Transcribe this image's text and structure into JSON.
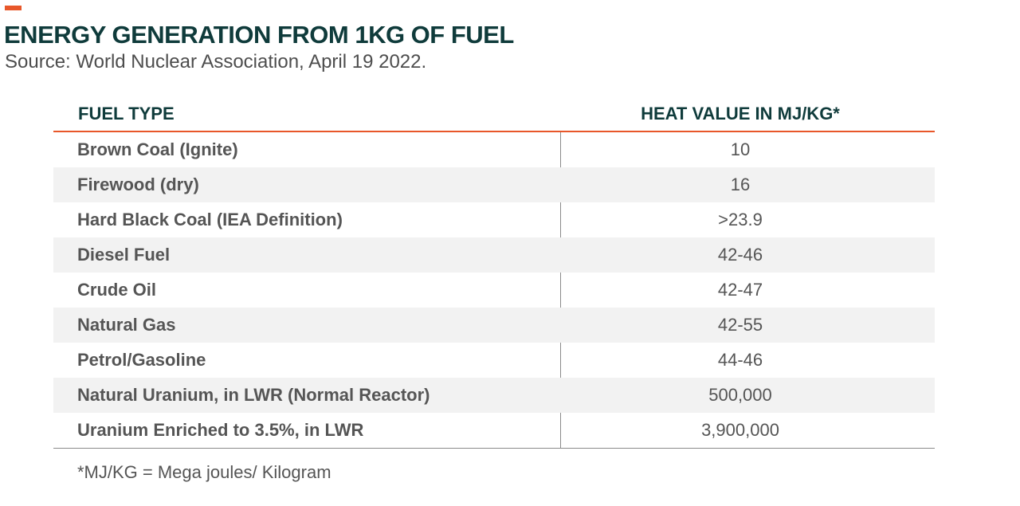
{
  "header": {
    "title": "ENERGY GENERATION FROM 1KG OF FUEL",
    "subtitle": "Source: World Nuclear Association, April 19 2022."
  },
  "colors": {
    "accent": "#e8572a",
    "title": "#0f3b3b",
    "text": "#555555",
    "row_alt": "#f2f2f2"
  },
  "chart_data": {
    "type": "table",
    "title": "ENERGY GENERATION FROM 1KG OF FUEL",
    "columns": [
      "FUEL TYPE",
      "HEAT VALUE IN MJ/KG*"
    ],
    "rows": [
      [
        "Brown Coal (Ignite)",
        "10"
      ],
      [
        "Firewood (dry)",
        "16"
      ],
      [
        "Hard Black Coal (IEA Definition)",
        ">23.9"
      ],
      [
        "Diesel Fuel",
        "42-46"
      ],
      [
        "Crude Oil",
        "42-47"
      ],
      [
        "Natural Gas",
        "42-55"
      ],
      [
        "Petrol/Gasoline",
        "44-46"
      ],
      [
        "Natural Uranium, in LWR (Normal Reactor)",
        "500,000"
      ],
      [
        "Uranium Enriched to 3.5%, in LWR",
        "3,900,000"
      ]
    ]
  },
  "footnote": "*MJ/KG = Mega joules/ Kilogram"
}
